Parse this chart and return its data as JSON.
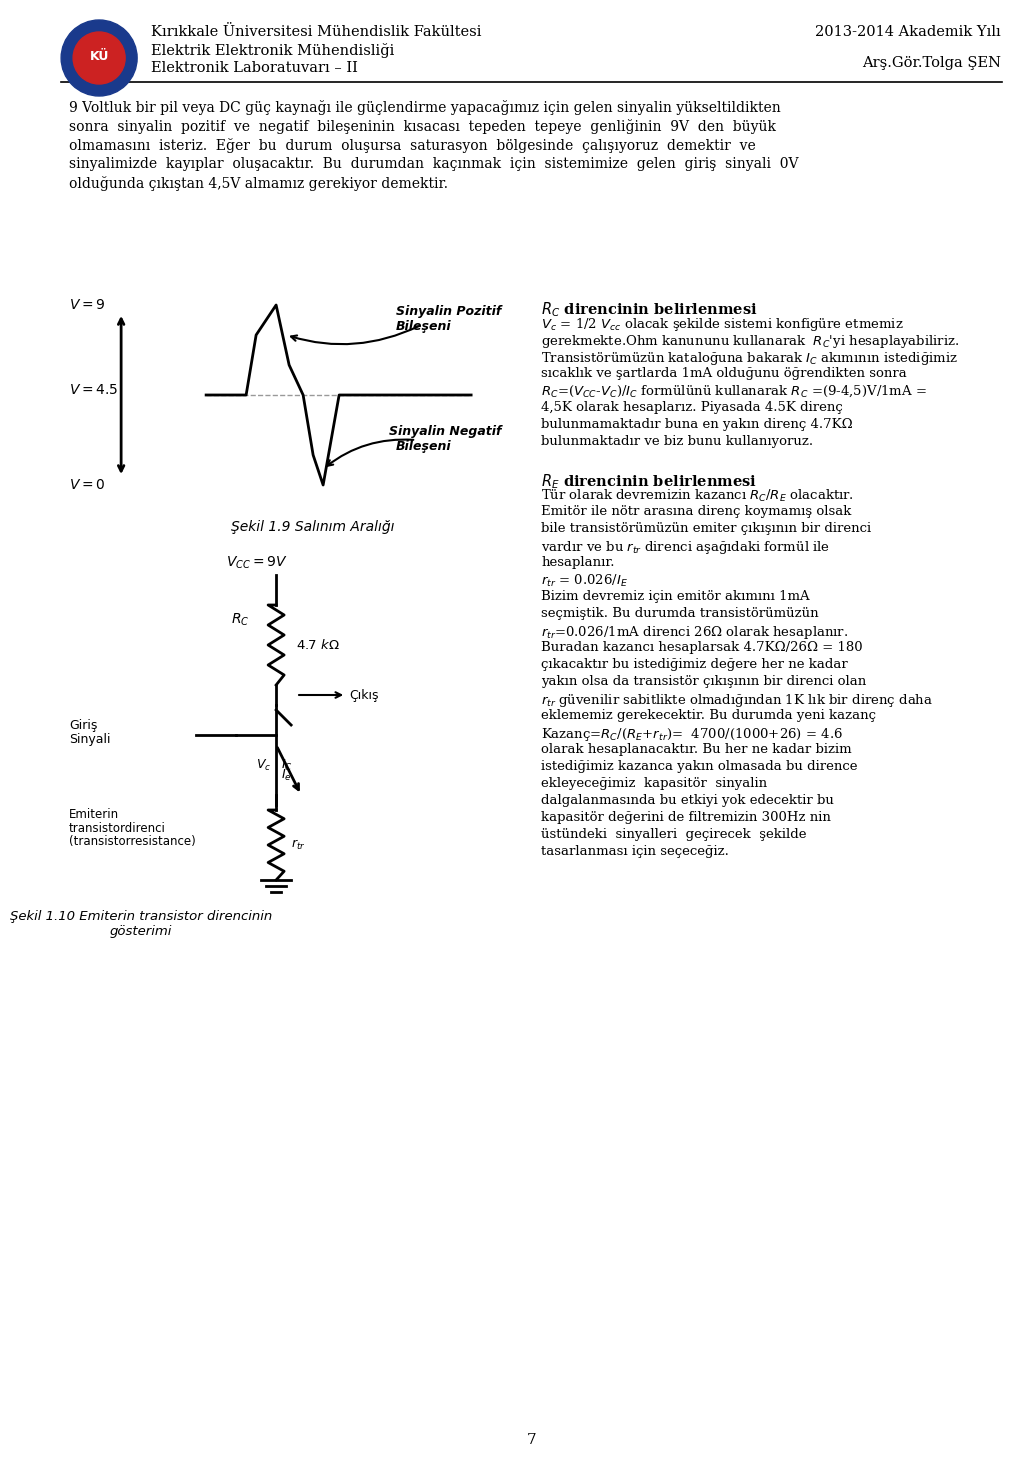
{
  "header_left_line1": "Kırıkkale Üniversitesi Mühendislik Fakültesi",
  "header_left_line2": "Elektrik Elektronik Mühendisliği",
  "header_left_line3": "Elektronik Laboratuvarı – II",
  "header_right_line1": "2013-2014 Akademik Yılı",
  "header_right_line2": "Arş.Gör.Tolga ŞEN",
  "paragraph1": "9 Voltluk bir pil veya DC güç kaynağı ile güçlendirme yapacağımız için gelen sinyalin yükseltildikten\nsonra sinyalin pozitif ve negatif bileşeninin kısacası tepeden tepeye genliğinin 9V den büyük\nolmamasını isteriz. Eğer bu durum oluşursa saturasyon bölgesinde çalışıyoruz demektir ve\nsinyalimizde kayıplar oluşacaktır. Bu durumdan kaçınmak için sistemimize gelen giriş sinyali 0V\nolduğunda çıkıştan 4,5V almamız gerekiyor demektir.",
  "sekil19_caption": "Şekil 1.9 Salınım Aralığı",
  "sekil110_caption": "Şekil 1.10 Emiterin transistor direncinin\ngösterimi",
  "rc_title": "Rₕ direncinin belirlenmesi",
  "rc_text": "Vₑ = 1/2 Vₑₑ olacak şekilde sistemi konfigüre etmemiz gerekmekte.Ohm kanununu kullanarak Rₕ'yi hesaplayabiliriz. Transistörümüzün kataloğuna bakarak Iₕ akımının istediğimiz sıcaklık ve şartlarda 1mA olduğunu öğrendikten sonra Rₕ=(Vₑₑ-Vₑ)/Iₕ formülünü kullanarak Rₕ =(9-4,5)V/1mA = 4,5K olarak hesaplarız. Piyasada 4.5K direnç bulunmamaktadır buna en yakın direnç 4.7KΩ bulunmaktadır ve biz bunu kullanıyoruz.",
  "re_title": "Rᴇ direncinin belirlenmesi",
  "re_text": "Tür olarak devremizin kazancı Rₕ/Rᴇ olacaktır. Emitör ile nötr arasına direnç koymamış olsak bile transistörümüzün emiter çıkışının bir direnci vardır ve bu rₜᵣ direnci aşağıdaki formül ile hesaplanır.\nrₜᵣ = 0.026/Iᴇ\nBizim devremiz için emitör akımını 1mA seçmiştik. Bu durumda transistörümüzün rₜᵣ=0.026/1mA direnci 26Ω olarak hesaplanır. Buradan kazancı hesaplarsak 4.7KΩ/26Ω = 180 çıkacaktır bu istediğimiz değere her ne kadar yakın olsa da transistör çıkışının bir direnci olan rₜᵣ güvenilir sabitlikte olmadığından 1K lık bir direnç daha eklememiz gerekecektir. Bu durumda yeni kazanç Kazanç=Rₕ/(Rᴇ+rₜᵣ)= 4700/(1000+26) = 4.6 olarak hesaplanacaktır. Bu her ne kadar bizim istediğimiz kazanca yakın olmasada bu dirence ekleyeceğimiz kapasitör sinyalin dalgalanmasında bu etkiyi yok edecektir bu kapasitör değerini de filtremizin 300Hz nin üstündeki sinyalleri geçirecek şekilde tasarlanması için seçeceğiz.",
  "page_number": "7",
  "bg_color": "#ffffff",
  "text_color": "#000000",
  "header_line_color": "#000000",
  "font_size_header": 10,
  "font_size_body": 9.5,
  "font_size_caption": 9,
  "font_size_title": 10
}
